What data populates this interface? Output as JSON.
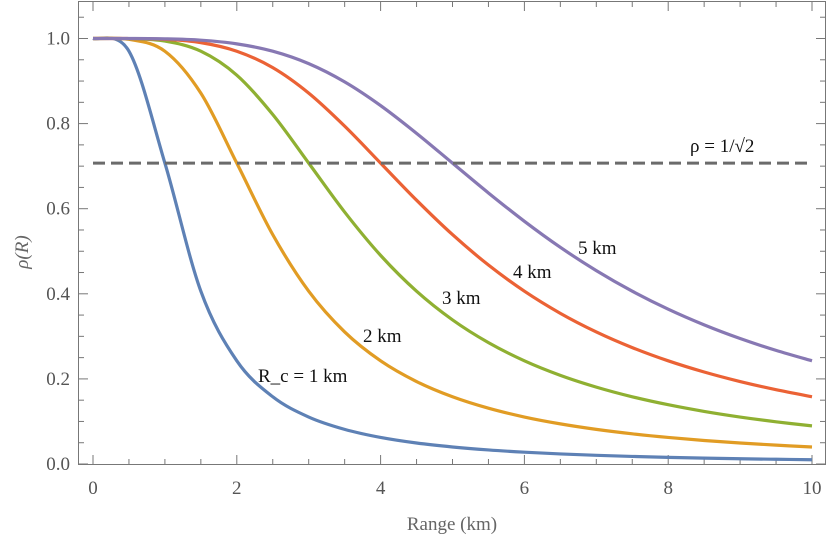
{
  "chart_data": {
    "type": "line",
    "title": "",
    "xlabel": "Range (km)",
    "ylabel": "ρ(R)",
    "xlim": [
      0,
      10
    ],
    "ylim": [
      0,
      1.0
    ],
    "xticks": [
      "0",
      "2",
      "4",
      "6",
      "8",
      "10"
    ],
    "yticks": [
      "0.0",
      "0.2",
      "0.4",
      "0.6",
      "0.8",
      "1.0"
    ],
    "grid": false,
    "x": [
      0,
      0.5,
      1,
      1.5,
      2,
      2.5,
      3,
      3.5,
      4,
      4.5,
      5,
      5.5,
      6,
      6.5,
      7,
      7.5,
      8,
      8.5,
      9,
      9.5,
      10
    ],
    "series": [
      {
        "name": "R_c = 1 km",
        "color": "#5E81B5",
        "values": [
          1,
          0.9701,
          0.7071,
          0.4061,
          0.2425,
          0.158,
          0.1104,
          0.0814,
          0.0624,
          0.0493,
          0.04,
          0.033,
          0.0278,
          0.0237,
          0.0204,
          0.0178,
          0.0156,
          0.0138,
          0.0123,
          0.0111,
          0.01
        ]
      },
      {
        "name": "2 km",
        "color": "#E19C24",
        "values": [
          1,
          0.998,
          0.9701,
          0.8716,
          0.7071,
          0.5391,
          0.4061,
          0.3104,
          0.2425,
          0.1938,
          0.158,
          0.1311,
          0.1104,
          0.0943,
          0.0814,
          0.071,
          0.0624,
          0.0553,
          0.0493,
          0.0443,
          0.04
        ]
      },
      {
        "name": "3 km",
        "color": "#8FB032",
        "values": [
          1,
          0.9996,
          0.9939,
          0.9701,
          0.9138,
          0.8214,
          0.7071,
          0.5921,
          0.4903,
          0.4061,
          0.3387,
          0.2852,
          0.2425,
          0.2083,
          0.1807,
          0.158,
          0.1393,
          0.1236,
          0.1104,
          0.0992,
          0.0896
        ]
      },
      {
        "name": "4 km",
        "color": "#EB6235",
        "values": [
          1,
          0.9999,
          0.998,
          0.9903,
          0.9701,
          0.9315,
          0.8716,
          0.794,
          0.7071,
          0.62,
          0.5391,
          0.4676,
          0.4061,
          0.3541,
          0.3104,
          0.2736,
          0.2425,
          0.2162,
          0.1938,
          0.1746,
          0.158
        ]
      },
      {
        "name": "5 km",
        "color": "#8778B3",
        "values": [
          1,
          1.0,
          0.9992,
          0.996,
          0.9874,
          0.9701,
          0.9409,
          0.898,
          0.8423,
          0.7771,
          0.7071,
          0.637,
          0.5704,
          0.5092,
          0.4545,
          0.4061,
          0.3638,
          0.327,
          0.2949,
          0.267,
          0.2425
        ]
      }
    ],
    "reference_line": {
      "label": "ρ = 1/√2",
      "y": 0.7071,
      "color": "#6B6B6B",
      "style": "dashed"
    },
    "annotations": [
      {
        "text": "R_c = 1 km",
        "series": 0
      },
      {
        "text": "2 km",
        "series": 1
      },
      {
        "text": "3 km",
        "series": 2
      },
      {
        "text": "4 km",
        "series": 3
      },
      {
        "text": "5 km",
        "series": 4
      }
    ]
  }
}
